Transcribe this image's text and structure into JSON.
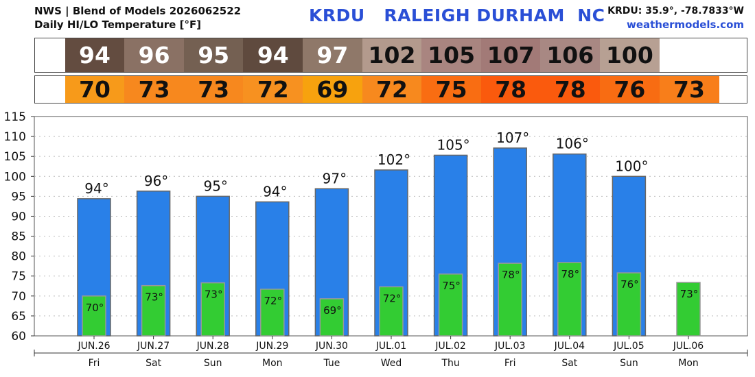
{
  "header": {
    "line1": "NWS | Blend of Models 2026062522",
    "line2": "Daily HI/LO Temperature [°F]",
    "station_code": "KRDU",
    "station_name": "RALEIGH DURHAM  NC",
    "coords": "KRDU: 35.9°, -78.7833°W",
    "site": "weathermodels.com"
  },
  "high_strip": {
    "values": [
      "94",
      "96",
      "95",
      "94",
      "97",
      "102",
      "105",
      "107",
      "106",
      "100"
    ],
    "colors": [
      "#634c40",
      "#8a7164",
      "#746052",
      "#5f4a3e",
      "#8f7869",
      "#b39a8d",
      "#a98580",
      "#a27a77",
      "#a88883",
      "#b7a093"
    ],
    "text_colors": [
      "#ffffff",
      "#ffffff",
      "#ffffff",
      "#ffffff",
      "#ffffff",
      "#111111",
      "#111111",
      "#111111",
      "#111111",
      "#111111"
    ]
  },
  "low_strip": {
    "values": [
      "70",
      "73",
      "73",
      "72",
      "69",
      "72",
      "75",
      "78",
      "78",
      "76",
      "73"
    ],
    "colors": [
      "#f79a1a",
      "#f7881e",
      "#f7881e",
      "#f79120",
      "#f7a20e",
      "#f7891e",
      "#f96d12",
      "#fa5a0d",
      "#fa5a0d",
      "#f86c12",
      "#f87e1a"
    ]
  },
  "colors": {
    "high_bar": "#2980e8",
    "low_bar": "#33cc33",
    "grid": "#bbbbbb"
  },
  "chart_data": {
    "type": "bar",
    "categories": [
      "JUN.26",
      "JUN.27",
      "JUN.28",
      "JUN.29",
      "JUN.30",
      "JUL.01",
      "JUL.02",
      "JUL.03",
      "JUL.04",
      "JUL.05",
      "JUL.06"
    ],
    "weekdays": [
      "Fri",
      "Sat",
      "Sun",
      "Mon",
      "Tue",
      "Wed",
      "Thu",
      "Fri",
      "Sat",
      "Sun",
      "Mon"
    ],
    "series": [
      {
        "values": [
          94.4,
          96.3,
          95.0,
          93.6,
          96.9,
          101.6,
          105.3,
          107.1,
          105.6,
          100.0,
          null
        ],
        "labels": [
          "94°",
          "96°",
          "95°",
          "94°",
          "97°",
          "102°",
          "105°",
          "107°",
          "106°",
          "100°",
          ""
        ]
      },
      {
        "values": [
          70.0,
          72.6,
          73.3,
          71.7,
          69.3,
          72.3,
          75.5,
          78.2,
          78.4,
          75.8,
          73.4
        ],
        "labels": [
          "70°",
          "73°",
          "73°",
          "72°",
          "69°",
          "72°",
          "75°",
          "78°",
          "78°",
          "76°",
          "73°"
        ]
      }
    ],
    "ylim": [
      60,
      115
    ],
    "yticks": [
      "60",
      "65",
      "70",
      "75",
      "80",
      "85",
      "90",
      "95",
      "100",
      "105",
      "110",
      "115"
    ],
    "grid": true
  }
}
